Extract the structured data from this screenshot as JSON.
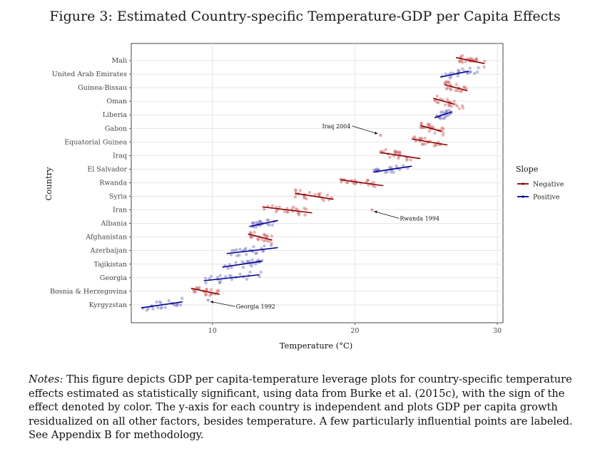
{
  "figure": {
    "title": "Figure 3: Estimated Country-specific Temperature-GDP per Capita Effects"
  },
  "chart_data": {
    "type": "scatter",
    "title": "Figure 3: Estimated Country-specific Temperature-GDP per Capita Effects",
    "xlabel": "Temperature (°C)",
    "ylabel": "Country",
    "xlim": [
      4.3,
      30.4
    ],
    "xticks": [
      10,
      20,
      30
    ],
    "grid": true,
    "legend": {
      "title": "Slope",
      "position": "right",
      "entries": [
        {
          "label": "Negative",
          "color": "#8b0000"
        },
        {
          "label": "Positive",
          "color": "#00008b"
        }
      ]
    },
    "colors": {
      "negative": "#8b0000",
      "positive": "#00008b",
      "negative_points": "#cd5c5c",
      "positive_points": "#6a6ac8"
    },
    "countries": [
      {
        "name": "Mali",
        "slope": "Negative",
        "x_range": [
          27.2,
          29.2
        ],
        "fit": [
          27.1,
          29.1
        ]
      },
      {
        "name": "United Arab Emirates",
        "slope": "Positive",
        "x_range": [
          26.0,
          28.8
        ],
        "fit": [
          26.0,
          28.0
        ]
      },
      {
        "name": "Guinea-Bissau",
        "slope": "Negative",
        "x_range": [
          26.3,
          28.0
        ],
        "fit": [
          26.3,
          27.9
        ]
      },
      {
        "name": "Oman",
        "slope": "Negative",
        "x_range": [
          25.6,
          27.8
        ],
        "fit": [
          25.5,
          27.0
        ]
      },
      {
        "name": "Liberia",
        "slope": "Positive",
        "x_range": [
          25.7,
          26.8
        ],
        "fit": [
          25.6,
          26.8
        ]
      },
      {
        "name": "Gabon",
        "slope": "Negative",
        "x_range": [
          24.5,
          26.4
        ],
        "fit": [
          24.6,
          26.1
        ]
      },
      {
        "name": "Equatorial Guinea",
        "slope": "Negative",
        "x_range": [
          24.0,
          26.1
        ],
        "fit": [
          24.0,
          26.5
        ]
      },
      {
        "name": "Iraq",
        "slope": "Negative",
        "x_range": [
          21.8,
          24.0
        ],
        "fit": [
          21.8,
          24.6
        ]
      },
      {
        "name": "El Salvador",
        "slope": "Positive",
        "x_range": [
          21.3,
          24.0
        ],
        "fit": [
          21.3,
          24.0
        ]
      },
      {
        "name": "Rwanda",
        "slope": "Negative",
        "x_range": [
          19.0,
          21.5
        ],
        "fit": [
          19.0,
          22.0
        ]
      },
      {
        "name": "Syria",
        "slope": "Negative",
        "x_range": [
          15.8,
          18.5
        ],
        "fit": [
          15.8,
          18.5
        ]
      },
      {
        "name": "Iran",
        "slope": "Negative",
        "x_range": [
          13.5,
          16.6
        ],
        "fit": [
          13.5,
          17.0
        ]
      },
      {
        "name": "Albania",
        "slope": "Positive",
        "x_range": [
          12.7,
          14.5
        ],
        "fit": [
          12.6,
          14.6
        ]
      },
      {
        "name": "Afghanistan",
        "slope": "Negative",
        "x_range": [
          12.5,
          14.2
        ],
        "fit": [
          12.5,
          14.2
        ]
      },
      {
        "name": "Azerbaijan",
        "slope": "Positive",
        "x_range": [
          11.0,
          14.2
        ],
        "fit": [
          11.0,
          14.6
        ]
      },
      {
        "name": "Tajikistan",
        "slope": "Positive",
        "x_range": [
          10.8,
          13.7
        ],
        "fit": [
          10.7,
          13.5
        ]
      },
      {
        "name": "Georgia",
        "slope": "Positive",
        "x_range": [
          9.4,
          13.5
        ],
        "fit": [
          9.4,
          13.3
        ]
      },
      {
        "name": "Bosnia & Herzegovina",
        "slope": "Negative",
        "x_range": [
          8.6,
          10.5
        ],
        "fit": [
          8.5,
          10.5
        ]
      },
      {
        "name": "Kyrgyzstan",
        "slope": "Positive",
        "x_range": [
          5.1,
          7.9
        ],
        "fit": [
          5.0,
          7.9
        ]
      }
    ],
    "annotations": [
      {
        "text": "Iraq 2004",
        "country": "Iraq",
        "x": 21.8,
        "y_offset": 1.5
      },
      {
        "text": "Rwanda 1994",
        "country": "Iran",
        "x": 21.2,
        "y_offset": 0.0
      },
      {
        "text": "Georgia 1992",
        "country": "Kyrgyzstan",
        "x": 9.7,
        "y_offset": 0.35
      }
    ]
  },
  "notes": {
    "lead": "Notes:",
    "body": " This figure depicts GDP per capita-temperature leverage plots for country-specific temperature effects estimated as statistically significant, using data from Burke et al. (2015c), with the sign of the effect denoted by color. The y-axis for each country is independent and plots GDP per capita growth residualized on all other factors, besides temperature. A few particularly influential points are labeled. See Appendix B for methodology."
  }
}
